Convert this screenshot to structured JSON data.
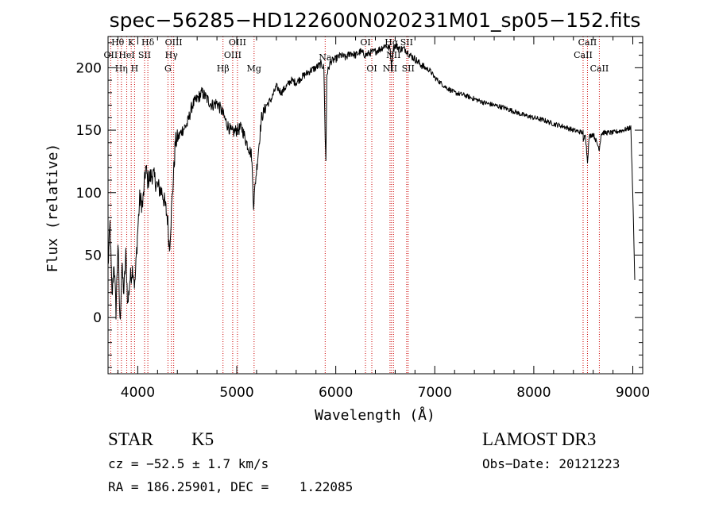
{
  "chart_data": {
    "type": "line",
    "title": "spec−56285−HD122600N020231M01_sp05−152.fits",
    "xlabel": "Wavelength (Å)",
    "ylabel": "Flux (relative)",
    "xlim": [
      3700,
      9100
    ],
    "ylim": [
      -45,
      225
    ],
    "xticks": [
      4000,
      5000,
      6000,
      7000,
      8000,
      9000
    ],
    "xtick_labels": [
      "4000",
      "5000",
      "6000",
      "7000",
      "8000",
      "9000"
    ],
    "yticks": [
      0,
      50,
      100,
      150,
      200
    ],
    "ytick_labels": [
      "0",
      "50",
      "100",
      "150",
      "200"
    ],
    "xminor_step": 200,
    "yminor_step": 10,
    "series": [
      {
        "name": "flux",
        "color": "#000000",
        "knots": [
          [
            3700,
            40
          ],
          [
            3720,
            75
          ],
          [
            3740,
            15
          ],
          [
            3760,
            45
          ],
          [
            3780,
            5
          ],
          [
            3800,
            60
          ],
          [
            3820,
            -5
          ],
          [
            3840,
            40
          ],
          [
            3860,
            20
          ],
          [
            3880,
            50
          ],
          [
            3900,
            10
          ],
          [
            3920,
            30
          ],
          [
            3950,
            40
          ],
          [
            3970,
            25
          ],
          [
            4000,
            70
          ],
          [
            4020,
            95
          ],
          [
            4050,
            90
          ],
          [
            4080,
            120
          ],
          [
            4100,
            110
          ],
          [
            4150,
            115
          ],
          [
            4200,
            105
          ],
          [
            4250,
            100
          ],
          [
            4300,
            80
          ],
          [
            4320,
            55
          ],
          [
            4340,
            85
          ],
          [
            4380,
            140
          ],
          [
            4450,
            150
          ],
          [
            4500,
            155
          ],
          [
            4550,
            170
          ],
          [
            4600,
            175
          ],
          [
            4650,
            180
          ],
          [
            4700,
            175
          ],
          [
            4750,
            170
          ],
          [
            4800,
            172
          ],
          [
            4850,
            165
          ],
          [
            4900,
            155
          ],
          [
            4950,
            148
          ],
          [
            5000,
            150
          ],
          [
            5050,
            152
          ],
          [
            5100,
            140
          ],
          [
            5150,
            130
          ],
          [
            5170,
            90
          ],
          [
            5190,
            110
          ],
          [
            5250,
            160
          ],
          [
            5300,
            170
          ],
          [
            5350,
            175
          ],
          [
            5400,
            185
          ],
          [
            5450,
            180
          ],
          [
            5500,
            185
          ],
          [
            5550,
            190
          ],
          [
            5600,
            188
          ],
          [
            5650,
            192
          ],
          [
            5700,
            195
          ],
          [
            5750,
            198
          ],
          [
            5800,
            200
          ],
          [
            5850,
            203
          ],
          [
            5880,
            200
          ],
          [
            5893,
            145
          ],
          [
            5900,
            125
          ],
          [
            5910,
            195
          ],
          [
            5950,
            205
          ],
          [
            6000,
            207
          ],
          [
            6050,
            210
          ],
          [
            6100,
            208
          ],
          [
            6150,
            212
          ],
          [
            6200,
            210
          ],
          [
            6250,
            213
          ],
          [
            6300,
            210
          ],
          [
            6350,
            212
          ],
          [
            6400,
            213
          ],
          [
            6450,
            215
          ],
          [
            6500,
            218
          ],
          [
            6550,
            215
          ],
          [
            6563,
            200
          ],
          [
            6580,
            215
          ],
          [
            6600,
            218
          ],
          [
            6650,
            215
          ],
          [
            6700,
            215
          ],
          [
            6750,
            210
          ],
          [
            6800,
            207
          ],
          [
            6850,
            203
          ],
          [
            6900,
            200
          ],
          [
            6950,
            198
          ],
          [
            7000,
            192
          ],
          [
            7100,
            185
          ],
          [
            7200,
            180
          ],
          [
            7300,
            178
          ],
          [
            7400,
            175
          ],
          [
            7500,
            172
          ],
          [
            7600,
            170
          ],
          [
            7700,
            168
          ],
          [
            7800,
            165
          ],
          [
            7900,
            162
          ],
          [
            8000,
            160
          ],
          [
            8100,
            158
          ],
          [
            8200,
            155
          ],
          [
            8300,
            153
          ],
          [
            8400,
            150
          ],
          [
            8498,
            148
          ],
          [
            8500,
            140
          ],
          [
            8520,
            148
          ],
          [
            8542,
            125
          ],
          [
            8560,
            145
          ],
          [
            8600,
            147
          ],
          [
            8662,
            135
          ],
          [
            8680,
            147
          ],
          [
            8700,
            148
          ],
          [
            8800,
            148
          ],
          [
            8900,
            150
          ],
          [
            8980,
            152
          ],
          [
            9000,
            100
          ],
          [
            9020,
            30
          ]
        ]
      }
    ],
    "lines": [
      {
        "name": "Hθ",
        "wave": 3798,
        "label_y": 218
      },
      {
        "name": "OII",
        "wave": 3727,
        "label_y": 208
      },
      {
        "name": "Hη",
        "wave": 3835,
        "label_y": 197
      },
      {
        "name": "HeI",
        "wave": 3889,
        "label_y": 208
      },
      {
        "name": "K",
        "wave": 3934,
        "label_y": 218
      },
      {
        "name": "H",
        "wave": 3968,
        "label_y": 197
      },
      {
        "name": "SII",
        "wave": 4069,
        "label_y": 208
      },
      {
        "name": "Hδ",
        "wave": 4102,
        "label_y": 218
      },
      {
        "name": "G",
        "wave": 4305,
        "label_y": 197
      },
      {
        "name": "Hγ",
        "wave": 4340,
        "label_y": 208
      },
      {
        "name": "OIII",
        "wave": 4363,
        "label_y": 218
      },
      {
        "name": "Hβ",
        "wave": 4861,
        "label_y": 197
      },
      {
        "name": "OIII",
        "wave": 4959,
        "label_y": 208
      },
      {
        "name": "OIII",
        "wave": 5007,
        "label_y": 218
      },
      {
        "name": "Mg",
        "wave": 5175,
        "label_y": 197
      },
      {
        "name": "Na",
        "wave": 5893,
        "label_y": 206
      },
      {
        "name": "OI",
        "wave": 6300,
        "label_y": 218
      },
      {
        "name": "OI",
        "wave": 6364,
        "label_y": 197
      },
      {
        "name": "NII",
        "wave": 6548,
        "label_y": 197
      },
      {
        "name": "Hα",
        "wave": 6563,
        "label_y": 218
      },
      {
        "name": "NII",
        "wave": 6583,
        "label_y": 208
      },
      {
        "name": "SII",
        "wave": 6716,
        "label_y": 218
      },
      {
        "name": "SII",
        "wave": 6731,
        "label_y": 197
      },
      {
        "name": "CaII",
        "wave": 8498,
        "label_y": 208
      },
      {
        "name": "CaII",
        "wave": 8542,
        "label_y": 218
      },
      {
        "name": "CaII",
        "wave": 8662,
        "label_y": 197
      }
    ],
    "line_color": "#cc0000",
    "axis_color": "#000000"
  },
  "info": {
    "object_type": "STAR",
    "subclass": "K5",
    "survey": "LAMOST DR3",
    "cz": "cz = −52.5 ± 1.7 km/s",
    "obs_date": "Obs−Date: 20121223",
    "coords": "RA = 186.25901, DEC =    1.22085"
  }
}
